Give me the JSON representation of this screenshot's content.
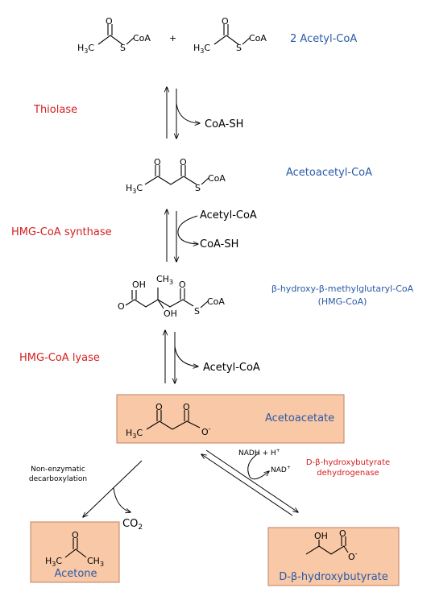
{
  "metabolites": {
    "acetyl_coa": "2 Acetyl-CoA",
    "acetoacetyl_coa": "Acetoacetyl-CoA",
    "hmg_coa_line1": "β-hydroxy-β-methylglutaryl-CoA",
    "hmg_coa_line2": "(HMG-CoA)",
    "acetoacetate": "Acetoacetate",
    "acetone": "Acetone",
    "hydroxybutyrate": "D-β-hydroxybutyrate"
  },
  "enzymes": {
    "thiolase": "Thiolase",
    "hmg_synthase": "HMG-CoA synthase",
    "hmg_lyase": "HMG-CoA lyase",
    "dehydrogenase_line1": "D-β-hydroxybutyrate",
    "dehydrogenase_line2": "dehydrogenase",
    "non_enzymatic_line1": "Non-enzymatic",
    "non_enzymatic_line2": "decarboxylation"
  },
  "cofactors": {
    "coa_sh_1": "CoA-SH",
    "acetyl_coa_in": "Acetyl-CoA",
    "coa_sh_2": "CoA-SH",
    "acetyl_coa_out": "Acetyl-CoA",
    "nadh": "NADH + H",
    "nadh_sup": "+",
    "nad": "NAD",
    "nad_sup": "+",
    "co2": "CO",
    "co2_sub": "2"
  },
  "atoms": {
    "h3c": "H",
    "three": "3",
    "c": "C",
    "s": "S",
    "coa": "CoA",
    "o": "O",
    "oh": "OH",
    "ch3": "CH",
    "o_minus": "O",
    "minus": "-",
    "plus": "+"
  },
  "colors": {
    "metabolite_blue": "#2a5aa8",
    "enzyme_red": "#d42020",
    "highlight_box": "#f9c8a6"
  }
}
